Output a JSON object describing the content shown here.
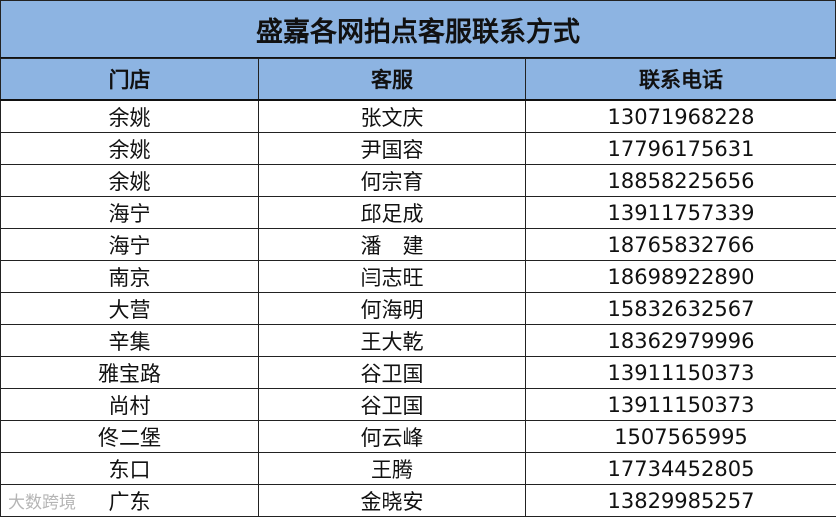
{
  "title": "盛嘉各网拍点客服联系方式",
  "headers": [
    "门店",
    "客服",
    "联系电话"
  ],
  "rows": [
    [
      "余姚",
      "张文庆",
      "13071968228"
    ],
    [
      "余姚",
      "尹国容",
      "17796175631"
    ],
    [
      "余姚",
      "何宗育",
      "18858225656"
    ],
    [
      "海宁",
      "邱足成",
      "13911757339"
    ],
    [
      "海宁",
      "潘　建",
      "18765832766"
    ],
    [
      "南京",
      "闫志旺",
      "18698922890"
    ],
    [
      "大营",
      "何海明",
      "15832632567"
    ],
    [
      "辛集",
      "王大乾",
      "18362979996"
    ],
    [
      "雅宝路",
      "谷卫国",
      "13911150373"
    ],
    [
      "尚村",
      "谷卫国",
      "13911150373"
    ],
    [
      "佟二堡",
      "何云峰",
      "1507565995"
    ],
    [
      "东口",
      "王腾",
      "17734452805"
    ],
    [
      "广东",
      "金晓安",
      "13829985257"
    ]
  ],
  "watermark": "大数跨境",
  "colors": {
    "header_bg": "#8db4e2"
  }
}
